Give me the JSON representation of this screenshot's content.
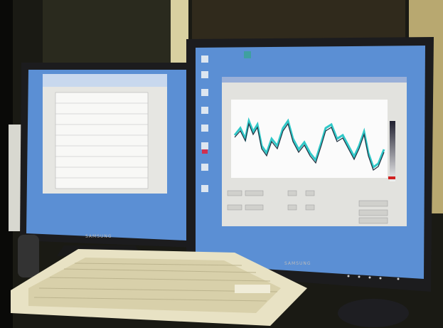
{
  "monitors": [
    {
      "brand": "SAMSUNG"
    },
    {
      "brand": "SAMSUNG"
    }
  ]
}
